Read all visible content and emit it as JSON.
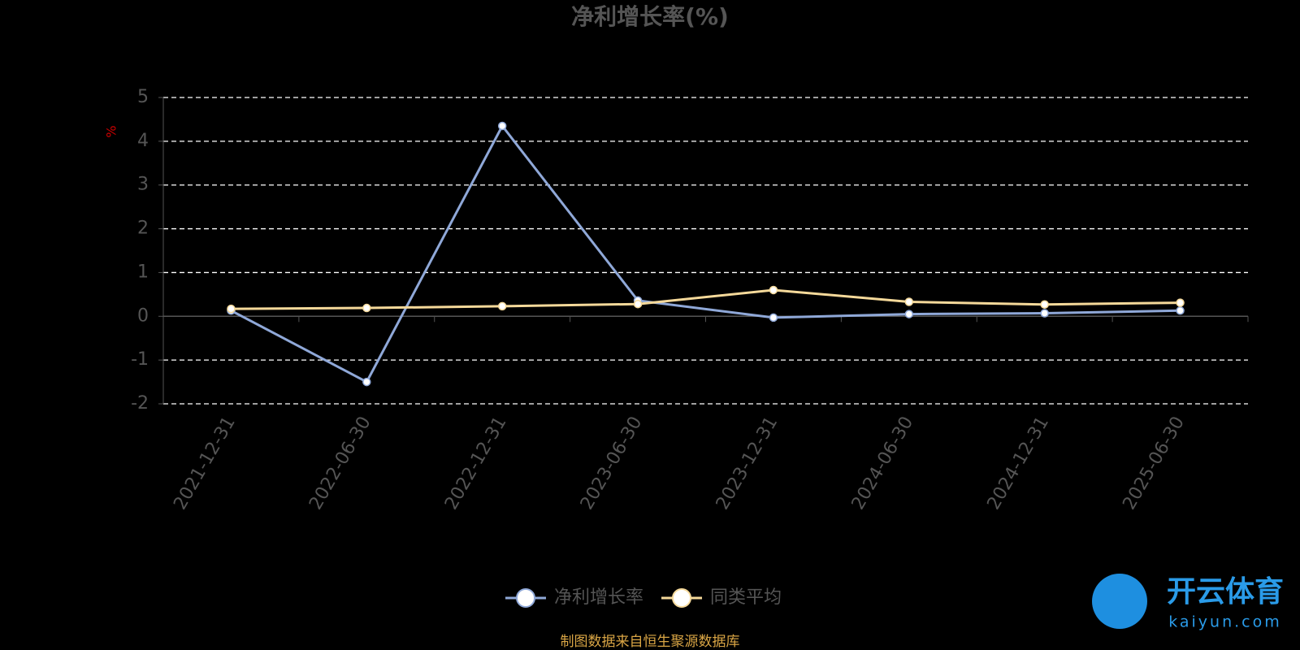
{
  "chart_data": {
    "type": "line",
    "title": "净利增长率(%)",
    "y_label": "%",
    "categories": [
      "2021-12-31",
      "2022-06-30",
      "2022-12-31",
      "2023-06-30",
      "2023-12-31",
      "2024-06-30",
      "2024-12-31",
      "2025-06-30"
    ],
    "series": [
      {
        "name": "净利增长率",
        "color": "#8fa8d8",
        "values": [
          0.13,
          -1.5,
          4.35,
          0.36,
          -0.03,
          0.05,
          0.07,
          0.13
        ]
      },
      {
        "name": "同类平均",
        "color": "#f5d99a",
        "values": [
          0.17,
          0.19,
          0.23,
          0.28,
          0.6,
          0.33,
          0.27,
          0.31
        ]
      }
    ],
    "ylim": [
      -2,
      5
    ],
    "yticks": [
      -2,
      -1,
      0,
      1,
      2,
      3,
      4,
      5
    ],
    "grid": true,
    "legend": "bottom",
    "source": "制图数据来自恒生聚源数据库",
    "watermark": {
      "brand": "开云体育",
      "site": "kaiyun.com"
    }
  }
}
